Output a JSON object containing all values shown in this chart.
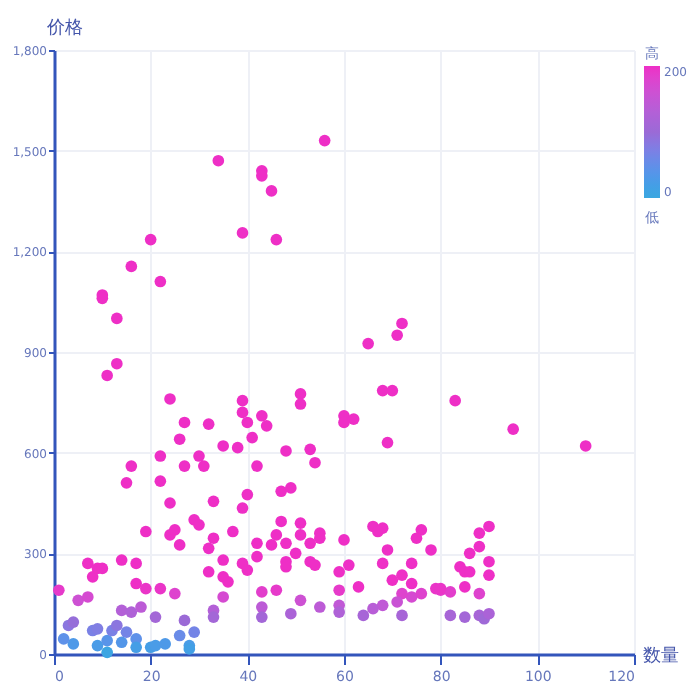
{
  "chart_data": {
    "type": "scatter",
    "xlabel": "数量",
    "ylabel": "价格",
    "annotations": [
      "高",
      "低"
    ],
    "xlim": [
      0,
      120
    ],
    "xticks": [
      0,
      20,
      40,
      60,
      80,
      100,
      120
    ],
    "ylim": [
      0,
      1800
    ],
    "yticks": [
      0,
      300,
      600,
      900,
      {
        "value": 1200,
        "label": "1,200"
      },
      {
        "value": 1500,
        "label": "1,500"
      },
      {
        "value": 1800,
        "label": "1,800"
      }
    ],
    "clim": [
      0,
      200
    ],
    "cticks": [
      0,
      200
    ],
    "grid": true,
    "marker": "circle",
    "series": [
      {
        "x": [
          10,
          10,
          13,
          16,
          20,
          22,
          34,
          39,
          43,
          43,
          45,
          46,
          56,
          65,
          71,
          72,
          11,
          13,
          68,
          70,
          83,
          60,
          60,
          62,
          69,
          95,
          110,
          24,
          27,
          32,
          39,
          39,
          40,
          43,
          41,
          44,
          51,
          51,
          16,
          15,
          22,
          22,
          26,
          27,
          30,
          31,
          35,
          38,
          42,
          48,
          53,
          54,
          24,
          33,
          39,
          40,
          47,
          49,
          19,
          24,
          25,
          26,
          29,
          30,
          32,
          33,
          37,
          35,
          39,
          40,
          42,
          42,
          45,
          46,
          47,
          48,
          48,
          48,
          50,
          51,
          51,
          53,
          53,
          55,
          55,
          54,
          32,
          35,
          36,
          35,
          1,
          5,
          7,
          7,
          8,
          9,
          10,
          14,
          17,
          17,
          19,
          22,
          25,
          14,
          16,
          18,
          21,
          33,
          33,
          43,
          46,
          49,
          51,
          43,
          43,
          55,
          3,
          4,
          4,
          2,
          8,
          9,
          9,
          11,
          12,
          13,
          15,
          14,
          17,
          17,
          20,
          21,
          23,
          26,
          27,
          29,
          28,
          11,
          28,
          66,
          68,
          67,
          76,
          75,
          90,
          88,
          88,
          86,
          78,
          69,
          68,
          61,
          74,
          90,
          84,
          85,
          86,
          90,
          70,
          72,
          74,
          60,
          59,
          63,
          59,
          59,
          59,
          79,
          80,
          82,
          80,
          85,
          88,
          74,
          76,
          72,
          71,
          68,
          66,
          64,
          72,
          82,
          85,
          88,
          89,
          90
        ],
        "values": [
          1070,
          1060,
          1000,
          1155,
          1235,
          1110,
          1470,
          1255,
          1440,
          1425,
          1380,
          1235,
          1530,
          925,
          950,
          985,
          830,
          865,
          785,
          785,
          755,
          710,
          690,
          700,
          630,
          670,
          620,
          760,
          690,
          685,
          720,
          755,
          690,
          710,
          645,
          680,
          775,
          745,
          560,
          510,
          590,
          515,
          640,
          560,
          590,
          560,
          620,
          615,
          560,
          605,
          610,
          570,
          450,
          455,
          435,
          475,
          485,
          495,
          365,
          355,
          370,
          325,
          400,
          385,
          315,
          345,
          365,
          280,
          270,
          250,
          330,
          290,
          325,
          355,
          395,
          330,
          275,
          260,
          300,
          390,
          355,
          330,
          275,
          360,
          345,
          265,
          245,
          230,
          215,
          170,
          190,
          160,
          170,
          270,
          230,
          255,
          255,
          280,
          270,
          210,
          195,
          195,
          180,
          130,
          125,
          140,
          110,
          130,
          110,
          185,
          190,
          120,
          160,
          140,
          110,
          140,
          85,
          95,
          30,
          45,
          70,
          75,
          25,
          40,
          70,
          85,
          65,
          35,
          45,
          20,
          20,
          25,
          30,
          55,
          100,
          65,
          25,
          5,
          15,
          380,
          375,
          365,
          370,
          345,
          380,
          360,
          320,
          300,
          310,
          310,
          270,
          265,
          270,
          275,
          260,
          245,
          245,
          235,
          220,
          235,
          210,
          340,
          245,
          200,
          190,
          145,
          125,
          195,
          190,
          185,
          195,
          200,
          180,
          170,
          180,
          180,
          155,
          145,
          135,
          115,
          115,
          115,
          110,
          115,
          105,
          120
        ],
        "cvalues": [
          200,
          200,
          200,
          200,
          200,
          200,
          200,
          200,
          200,
          200,
          200,
          200,
          200,
          200,
          200,
          200,
          200,
          200,
          200,
          200,
          200,
          200,
          200,
          200,
          200,
          200,
          200,
          200,
          200,
          200,
          200,
          200,
          200,
          200,
          200,
          200,
          200,
          200,
          200,
          200,
          200,
          200,
          200,
          200,
          200,
          200,
          200,
          200,
          200,
          200,
          200,
          200,
          200,
          200,
          200,
          200,
          200,
          200,
          200,
          200,
          200,
          200,
          200,
          200,
          200,
          200,
          200,
          200,
          200,
          200,
          200,
          200,
          200,
          200,
          200,
          200,
          200,
          200,
          200,
          200,
          200,
          200,
          200,
          200,
          200,
          200,
          200,
          200,
          200,
          170,
          190,
          160,
          170,
          200,
          200,
          200,
          200,
          200,
          200,
          200,
          195,
          195,
          180,
          130,
          125,
          140,
          110,
          130,
          110,
          185,
          190,
          120,
          160,
          140,
          110,
          140,
          85,
          95,
          30,
          45,
          70,
          75,
          25,
          40,
          70,
          85,
          65,
          35,
          45,
          20,
          20,
          25,
          30,
          55,
          100,
          65,
          25,
          5,
          15,
          200,
          200,
          200,
          200,
          200,
          200,
          200,
          200,
          200,
          200,
          200,
          200,
          200,
          200,
          200,
          200,
          200,
          200,
          200,
          200,
          200,
          200,
          200,
          200,
          200,
          190,
          145,
          125,
          195,
          190,
          185,
          195,
          200,
          180,
          170,
          180,
          180,
          155,
          145,
          135,
          115,
          115,
          115,
          110,
          115,
          105,
          120
        ]
      }
    ]
  }
}
